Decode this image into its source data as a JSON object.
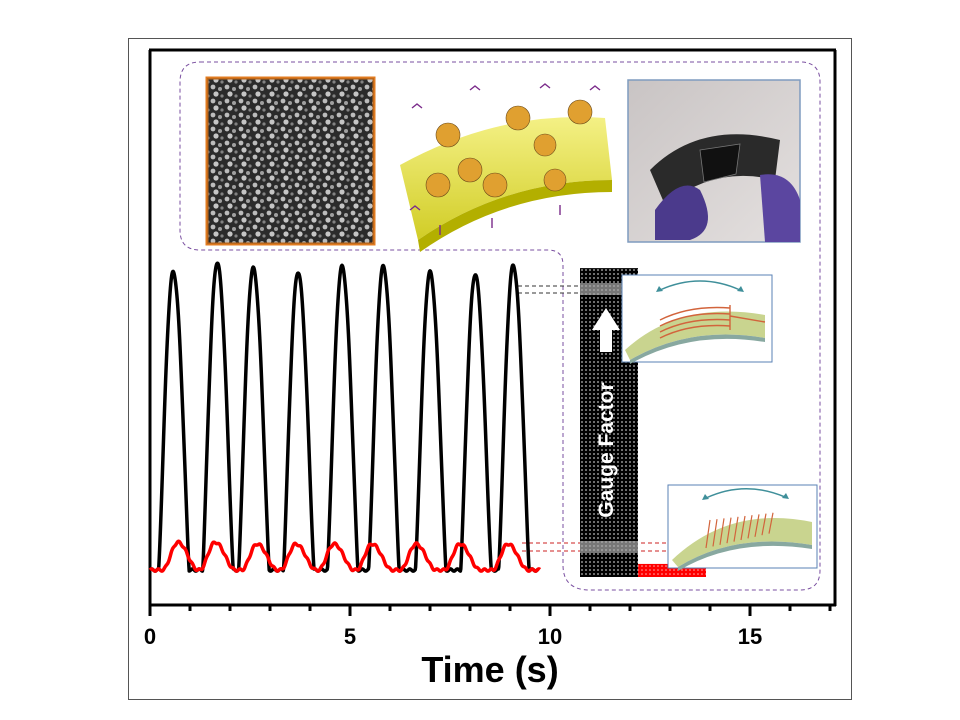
{
  "chart_data": {
    "type": "line",
    "xlabel": "Time (s)",
    "ylabel": "",
    "xlim": [
      0,
      17.1
    ],
    "ylim": [
      0,
      1
    ],
    "x_ticks": [
      0,
      5,
      10,
      15
    ],
    "x_tick_labels": [
      "0",
      "5",
      "10",
      "15"
    ],
    "x_minor_step": 1,
    "grid": false,
    "series": [
      {
        "color": "#000000",
        "baseline": 0.063,
        "t_start": 0,
        "t_end": 9.7,
        "peaks": [
          {
            "t": 0.58,
            "y": 0.6
          },
          {
            "t": 1.68,
            "y": 0.617
          },
          {
            "t": 2.58,
            "y": 0.607
          },
          {
            "t": 3.7,
            "y": 0.6
          },
          {
            "t": 4.8,
            "y": 0.61
          },
          {
            "t": 5.83,
            "y": 0.61
          },
          {
            "t": 7.0,
            "y": 0.6
          },
          {
            "t": 8.13,
            "y": 0.596
          },
          {
            "t": 9.08,
            "y": 0.612
          }
        ]
      },
      {
        "color": "#ff0000",
        "baseline": 0.063,
        "t_start": 0,
        "t_end": 9.75,
        "peaks": [
          {
            "t": 0.7,
            "y": 0.113
          },
          {
            "t": 1.63,
            "y": 0.113
          },
          {
            "t": 2.68,
            "y": 0.11
          },
          {
            "t": 3.65,
            "y": 0.11
          },
          {
            "t": 4.6,
            "y": 0.11
          },
          {
            "t": 5.55,
            "y": 0.11
          },
          {
            "t": 6.65,
            "y": 0.11
          },
          {
            "t": 7.75,
            "y": 0.11
          },
          {
            "t": 8.95,
            "y": 0.11
          }
        ]
      }
    ],
    "bars": [
      {
        "label": "Gauge Factor",
        "x0": 10.75,
        "x1": 12.2,
        "y": 0.607,
        "color": "#000000"
      },
      {
        "x0": 12.2,
        "x1": 13.9,
        "y": 0.074,
        "color": "#ff0000"
      }
    ]
  },
  "colors": {
    "sem_border": "#e07b20",
    "photo_border": "#7f9bbf",
    "dashed_region": "#7a4fa0",
    "inset_border": "#5a82b4",
    "bend_arrow": "#3f8f9a",
    "electrode": "#d2643c",
    "substrate": "#c9d48f"
  },
  "icons": {
    "gauge_arrow": "arrow-up-icon"
  }
}
